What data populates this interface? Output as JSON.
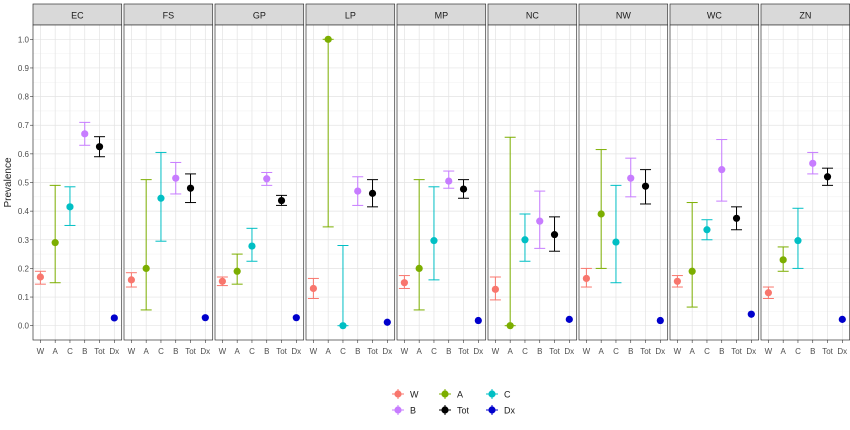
{
  "chart_data": {
    "type": "scatter",
    "subtype": "faceted point-range (error bar) plot",
    "ylabel": "Prevalence",
    "ylim": [
      -0.05,
      1.05
    ],
    "yticks": [
      "0.0",
      "0.1",
      "0.2",
      "0.3",
      "0.4",
      "0.5",
      "0.6",
      "0.7",
      "0.8",
      "0.9",
      "1.0"
    ],
    "grid": true,
    "legend_position": "bottom",
    "categories": [
      "W",
      "A",
      "C",
      "B",
      "Tot",
      "Dx"
    ],
    "colors": {
      "W": "#F8766D",
      "A": "#7CAE00",
      "C": "#00BFC4",
      "B": "#C77CFF",
      "Tot": "#000000",
      "Dx": "#0000CC"
    },
    "legend": [
      {
        "key": "W",
        "label": "W"
      },
      {
        "key": "A",
        "label": "A"
      },
      {
        "key": "C",
        "label": "C"
      },
      {
        "key": "B",
        "label": "B"
      },
      {
        "key": "Tot",
        "label": "Tot"
      },
      {
        "key": "Dx",
        "label": "Dx"
      }
    ],
    "panels": [
      {
        "name": "EC",
        "points": [
          {
            "cat": "W",
            "y": 0.17,
            "lo": 0.145,
            "hi": 0.19
          },
          {
            "cat": "A",
            "y": 0.29,
            "lo": 0.15,
            "hi": 0.49
          },
          {
            "cat": "C",
            "y": 0.415,
            "lo": 0.35,
            "hi": 0.485
          },
          {
            "cat": "B",
            "y": 0.67,
            "lo": 0.63,
            "hi": 0.71
          },
          {
            "cat": "Tot",
            "y": 0.625,
            "lo": 0.59,
            "hi": 0.66
          },
          {
            "cat": "Dx",
            "y": 0.027
          }
        ]
      },
      {
        "name": "FS",
        "points": [
          {
            "cat": "W",
            "y": 0.16,
            "lo": 0.135,
            "hi": 0.185
          },
          {
            "cat": "A",
            "y": 0.2,
            "lo": 0.055,
            "hi": 0.51
          },
          {
            "cat": "C",
            "y": 0.445,
            "lo": 0.295,
            "hi": 0.605
          },
          {
            "cat": "B",
            "y": 0.515,
            "lo": 0.46,
            "hi": 0.57
          },
          {
            "cat": "Tot",
            "y": 0.48,
            "lo": 0.43,
            "hi": 0.53
          },
          {
            "cat": "Dx",
            "y": 0.028
          }
        ]
      },
      {
        "name": "GP",
        "points": [
          {
            "cat": "W",
            "y": 0.155,
            "lo": 0.14,
            "hi": 0.17
          },
          {
            "cat": "A",
            "y": 0.19,
            "lo": 0.145,
            "hi": 0.25
          },
          {
            "cat": "C",
            "y": 0.278,
            "lo": 0.225,
            "hi": 0.34
          },
          {
            "cat": "B",
            "y": 0.513,
            "lo": 0.49,
            "hi": 0.535
          },
          {
            "cat": "Tot",
            "y": 0.437,
            "lo": 0.42,
            "hi": 0.455
          },
          {
            "cat": "Dx",
            "y": 0.028
          }
        ]
      },
      {
        "name": "LP",
        "points": [
          {
            "cat": "W",
            "y": 0.13,
            "lo": 0.095,
            "hi": 0.165
          },
          {
            "cat": "A",
            "y": 1.0,
            "lo": 0.345,
            "hi": 1.0
          },
          {
            "cat": "C",
            "y": 0.0,
            "lo": 0.0,
            "hi": 0.28
          },
          {
            "cat": "B",
            "y": 0.47,
            "lo": 0.42,
            "hi": 0.52
          },
          {
            "cat": "Tot",
            "y": 0.462,
            "lo": 0.415,
            "hi": 0.51
          },
          {
            "cat": "Dx",
            "y": 0.012
          }
        ]
      },
      {
        "name": "MP",
        "points": [
          {
            "cat": "W",
            "y": 0.15,
            "lo": 0.13,
            "hi": 0.175
          },
          {
            "cat": "A",
            "y": 0.2,
            "lo": 0.055,
            "hi": 0.51
          },
          {
            "cat": "C",
            "y": 0.297,
            "lo": 0.16,
            "hi": 0.485
          },
          {
            "cat": "B",
            "y": 0.505,
            "lo": 0.48,
            "hi": 0.54
          },
          {
            "cat": "Tot",
            "y": 0.477,
            "lo": 0.445,
            "hi": 0.51
          },
          {
            "cat": "Dx",
            "y": 0.018
          }
        ]
      },
      {
        "name": "NC",
        "points": [
          {
            "cat": "W",
            "y": 0.127,
            "lo": 0.09,
            "hi": 0.17
          },
          {
            "cat": "A",
            "y": 0.0,
            "lo": 0.0,
            "hi": 0.658
          },
          {
            "cat": "C",
            "y": 0.3,
            "lo": 0.225,
            "hi": 0.39
          },
          {
            "cat": "B",
            "y": 0.365,
            "lo": 0.27,
            "hi": 0.47
          },
          {
            "cat": "Tot",
            "y": 0.318,
            "lo": 0.26,
            "hi": 0.38
          },
          {
            "cat": "Dx",
            "y": 0.022
          }
        ]
      },
      {
        "name": "NW",
        "points": [
          {
            "cat": "W",
            "y": 0.165,
            "lo": 0.135,
            "hi": 0.2
          },
          {
            "cat": "A",
            "y": 0.39,
            "lo": 0.2,
            "hi": 0.615
          },
          {
            "cat": "C",
            "y": 0.292,
            "lo": 0.15,
            "hi": 0.49
          },
          {
            "cat": "B",
            "y": 0.515,
            "lo": 0.45,
            "hi": 0.585
          },
          {
            "cat": "Tot",
            "y": 0.487,
            "lo": 0.425,
            "hi": 0.545
          },
          {
            "cat": "Dx",
            "y": 0.018
          }
        ]
      },
      {
        "name": "WC",
        "points": [
          {
            "cat": "W",
            "y": 0.155,
            "lo": 0.135,
            "hi": 0.175
          },
          {
            "cat": "A",
            "y": 0.19,
            "lo": 0.065,
            "hi": 0.43
          },
          {
            "cat": "C",
            "y": 0.335,
            "lo": 0.3,
            "hi": 0.37
          },
          {
            "cat": "B",
            "y": 0.545,
            "lo": 0.435,
            "hi": 0.65
          },
          {
            "cat": "Tot",
            "y": 0.375,
            "lo": 0.335,
            "hi": 0.415
          },
          {
            "cat": "Dx",
            "y": 0.04
          }
        ]
      },
      {
        "name": "ZN",
        "points": [
          {
            "cat": "W",
            "y": 0.115,
            "lo": 0.095,
            "hi": 0.135
          },
          {
            "cat": "A",
            "y": 0.23,
            "lo": 0.19,
            "hi": 0.275
          },
          {
            "cat": "C",
            "y": 0.297,
            "lo": 0.2,
            "hi": 0.41
          },
          {
            "cat": "B",
            "y": 0.567,
            "lo": 0.53,
            "hi": 0.605
          },
          {
            "cat": "Tot",
            "y": 0.52,
            "lo": 0.49,
            "hi": 0.55
          },
          {
            "cat": "Dx",
            "y": 0.022
          }
        ]
      }
    ]
  }
}
